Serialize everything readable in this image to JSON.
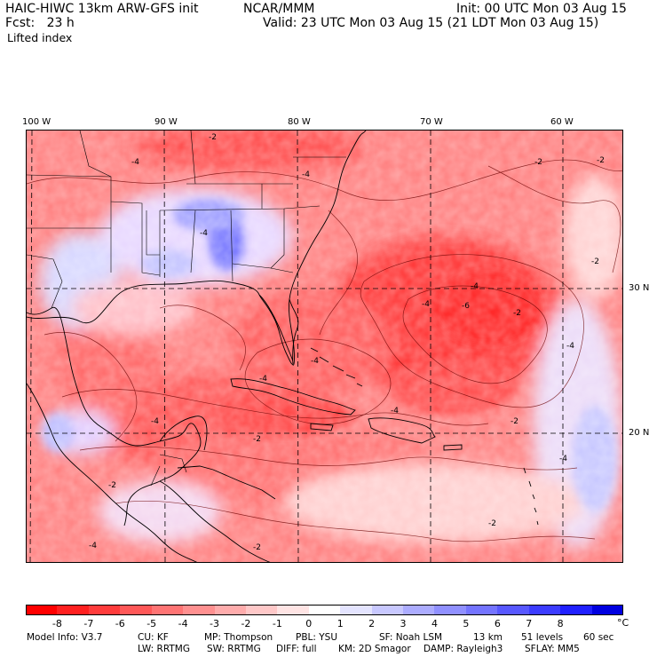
{
  "header": {
    "model": "HAIC-HIWC 13km ARW-GFS init",
    "center": "NCAR/MMM",
    "init": "Init: 00 UTC Mon 03 Aug 15",
    "fcst": "Fcst:   23 h",
    "valid": "Valid: 23 UTC Mon 03 Aug 15 (21 LDT Mon 03 Aug 15)",
    "field": "Lifted index"
  },
  "axes": {
    "lon_labels": [
      "100 W",
      "90 W",
      "80 W",
      "70 W",
      "60 W"
    ],
    "lat_labels": [
      "30 N",
      "20 N"
    ]
  },
  "contour_labels": [
    "-4",
    "-2",
    "-4",
    "-2",
    "-2",
    "-4",
    "-2",
    "-4",
    "-6",
    "-4",
    "-4",
    "-4",
    "-4",
    "-2",
    "-4",
    "-2",
    "-2",
    "-2",
    "-4",
    "-2",
    "-4",
    "-4",
    "-2"
  ],
  "colorbar": {
    "colors": [
      "#ff0000",
      "#ff2020",
      "#ff3c3c",
      "#ff5858",
      "#ff7474",
      "#ff9090",
      "#ffacac",
      "#ffc8c8",
      "#ffe4e4",
      "#ffffff",
      "#e4e4ff",
      "#c8c8ff",
      "#acacff",
      "#9090ff",
      "#7474ff",
      "#5858ff",
      "#3c3cff",
      "#2020ff",
      "#0000e0"
    ],
    "labels": [
      "-8",
      "-7",
      "-6",
      "-5",
      "-4",
      "-3",
      "-2",
      "-1",
      "0",
      "1",
      "2",
      "3",
      "4",
      "5",
      "6",
      "7",
      "8"
    ],
    "unit": "°C"
  },
  "footer": {
    "line1": [
      "Model Info: V3.7",
      "CU: KF",
      "MP: Thompson",
      "PBL: YSU",
      "SF: Noah LSM",
      "13 km",
      "51 levels",
      "60 sec"
    ],
    "line2": [
      "LW: RRTMG",
      "SW: RRTMG",
      "DIFF: full",
      "KM: 2D Smagor",
      "DAMP: Rayleigh3",
      "SFLAY: MM5"
    ]
  }
}
